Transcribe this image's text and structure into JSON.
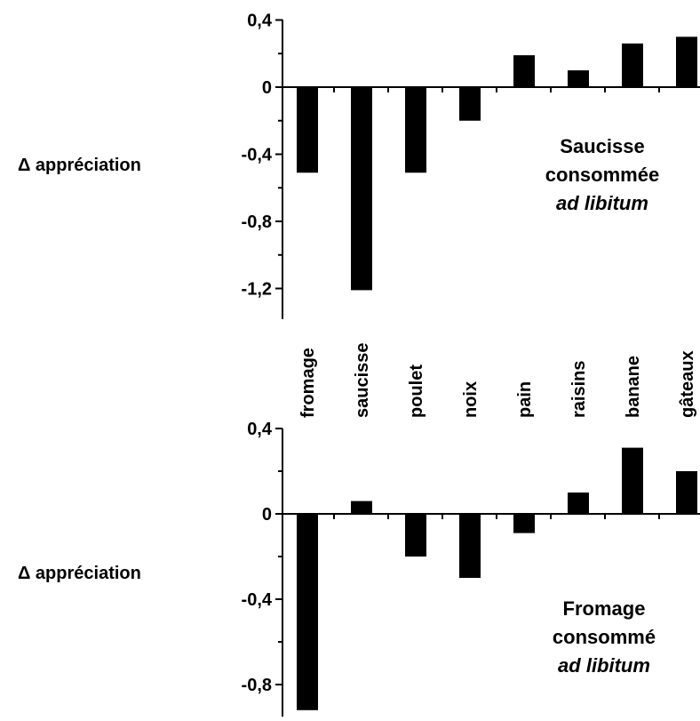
{
  "chart_data": [
    {
      "type": "bar",
      "categories": [
        "fromage",
        "saucisse",
        "poulet",
        "noix",
        "pain",
        "raisins",
        "banane",
        "gâteaux"
      ],
      "values": [
        -0.51,
        -1.21,
        -0.51,
        -0.2,
        0.19,
        0.1,
        0.26,
        0.3
      ],
      "ylabel": "Δ appréciation",
      "ylim": [
        -1.2,
        0.4
      ],
      "yticks": [
        "0,4",
        "0",
        "-0,4",
        "-0,8",
        "-1,2"
      ],
      "annotation": [
        "Saucisse",
        "consommée",
        "ad libitum"
      ],
      "bar_color": "#000000",
      "grid": false
    },
    {
      "type": "bar",
      "categories": [
        "fromage",
        "saucisse",
        "poulet",
        "noix",
        "pain",
        "raisins",
        "banane",
        "gâteaux"
      ],
      "values": [
        -0.92,
        0.06,
        -0.2,
        -0.3,
        -0.09,
        0.1,
        0.31,
        0.2
      ],
      "ylabel": "Δ appréciation",
      "ylim": [
        -0.9,
        0.4
      ],
      "yticks": [
        "0,4",
        "0",
        "-0,4",
        "-0,8"
      ],
      "annotation": [
        "Fromage",
        "consommé",
        "ad libitum"
      ],
      "bar_color": "#000000",
      "grid": false
    }
  ]
}
